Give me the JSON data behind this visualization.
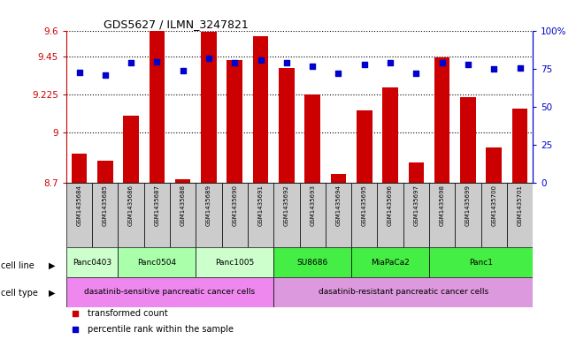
{
  "title": "GDS5627 / ILMN_3247821",
  "samples": [
    "GSM1435684",
    "GSM1435685",
    "GSM1435686",
    "GSM1435687",
    "GSM1435688",
    "GSM1435689",
    "GSM1435690",
    "GSM1435691",
    "GSM1435692",
    "GSM1435693",
    "GSM1435694",
    "GSM1435695",
    "GSM1435696",
    "GSM1435697",
    "GSM1435698",
    "GSM1435699",
    "GSM1435700",
    "GSM1435701"
  ],
  "transformed_count": [
    8.87,
    8.83,
    9.1,
    9.6,
    8.72,
    9.595,
    9.43,
    9.57,
    9.38,
    9.225,
    8.75,
    9.13,
    9.265,
    8.82,
    9.445,
    9.21,
    8.91,
    9.14
  ],
  "percentile_rank": [
    73,
    71,
    79,
    80,
    74,
    82,
    79,
    81,
    79,
    77,
    72,
    78,
    79,
    72,
    79,
    78,
    75,
    76
  ],
  "ylim_left": [
    8.7,
    9.6
  ],
  "yticks_left": [
    8.7,
    9.0,
    9.225,
    9.45,
    9.6
  ],
  "ytick_labels_left": [
    "8.7",
    "9",
    "9.225",
    "9.45",
    "9.6"
  ],
  "ylim_right": [
    0,
    100
  ],
  "yticks_right": [
    0,
    25,
    50,
    75,
    100
  ],
  "ytick_labels_right": [
    "0",
    "25",
    "50",
    "75",
    "100%"
  ],
  "bar_color": "#cc0000",
  "dot_color": "#0000cc",
  "cell_line_groups": [
    {
      "label": "Panc0403",
      "start": 0,
      "end": 2,
      "color": "#ccffcc"
    },
    {
      "label": "Panc0504",
      "start": 2,
      "end": 5,
      "color": "#aaffaa"
    },
    {
      "label": "Panc1005",
      "start": 5,
      "end": 8,
      "color": "#ccffcc"
    },
    {
      "label": "SU8686",
      "start": 8,
      "end": 11,
      "color": "#44ee44"
    },
    {
      "label": "MiaPaCa2",
      "start": 11,
      "end": 14,
      "color": "#44ee44"
    },
    {
      "label": "Panc1",
      "start": 14,
      "end": 18,
      "color": "#44ee44"
    }
  ],
  "cell_type_groups": [
    {
      "label": "dasatinib-sensitive pancreatic cancer cells",
      "start": 0,
      "end": 8,
      "color": "#ee88ee"
    },
    {
      "label": "dasatinib-resistant pancreatic cancer cells",
      "start": 8,
      "end": 18,
      "color": "#dd99dd"
    }
  ],
  "legend_items": [
    {
      "label": "transformed count",
      "color": "#cc0000",
      "marker": "s"
    },
    {
      "label": "percentile rank within the sample",
      "color": "#0000cc",
      "marker": "s"
    }
  ],
  "sample_box_color": "#cccccc",
  "background_color": "#ffffff",
  "tick_label_color_left": "#cc0000",
  "tick_label_color_right": "#0000cc"
}
